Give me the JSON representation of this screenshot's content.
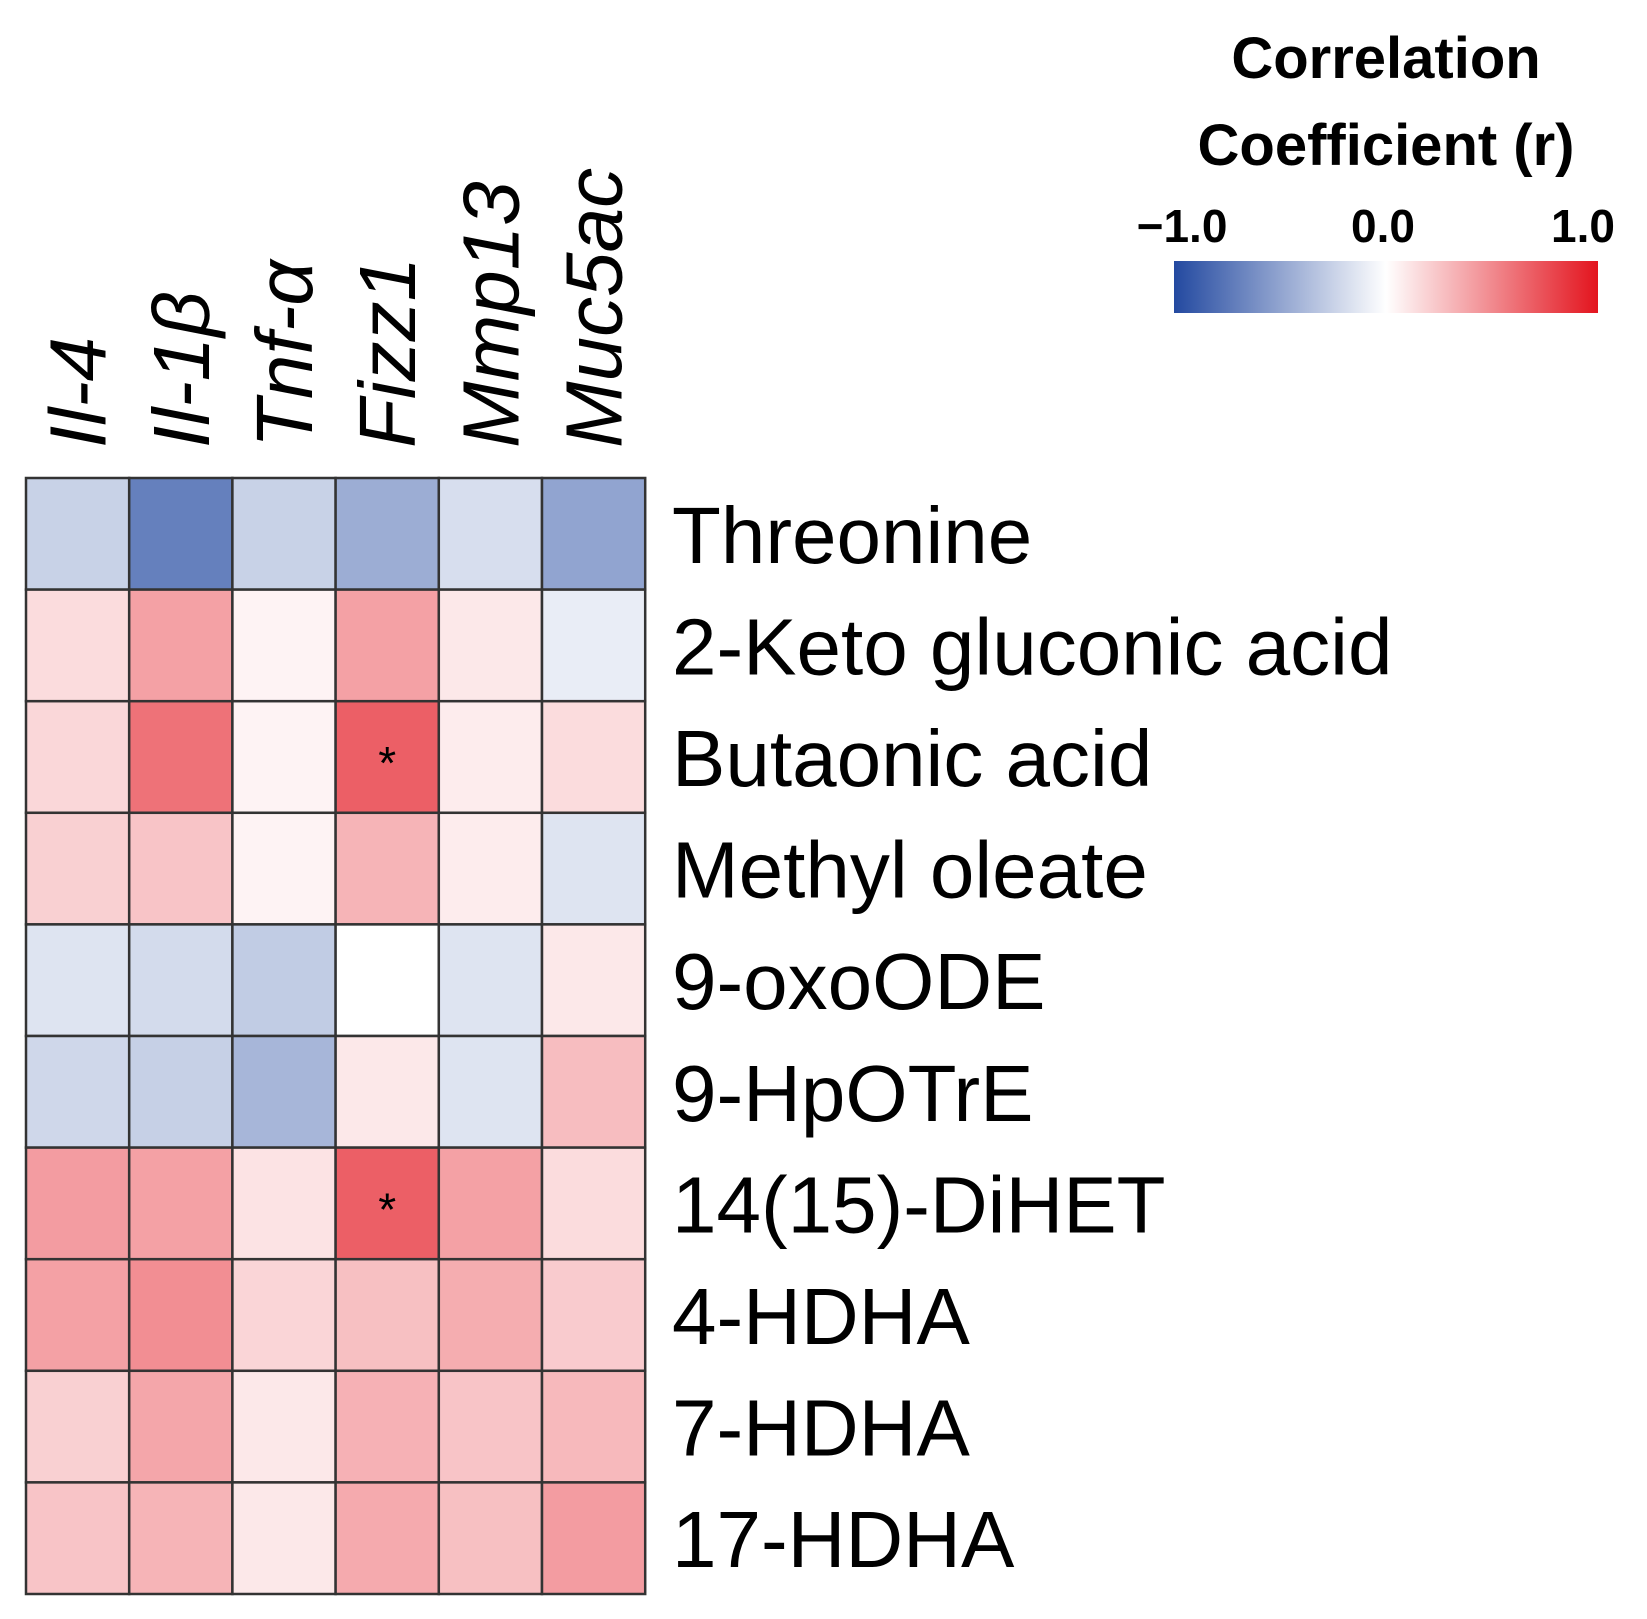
{
  "chart_data": {
    "type": "heatmap",
    "columns": [
      "Il-4",
      "Il-1β",
      "Tnf-α",
      "Fizz1",
      "Mmp13",
      "Muc5ac"
    ],
    "rows": [
      "Threonine",
      "2-Keto gluconic acid",
      "Butaonic acid",
      "Methyl oleate",
      "9-oxoODE",
      "9-HpOTrE",
      "14(15)-DiHET",
      "4-HDHA",
      "7-HDHA",
      "17-HDHA"
    ],
    "values": [
      [
        -0.25,
        -0.7,
        -0.25,
        -0.45,
        -0.18,
        -0.5
      ],
      [
        0.15,
        0.4,
        0.05,
        0.4,
        0.1,
        -0.1
      ],
      [
        0.17,
        0.6,
        0.05,
        0.68,
        0.08,
        0.15
      ],
      [
        0.2,
        0.25,
        0.05,
        0.32,
        0.08,
        -0.15
      ],
      [
        -0.15,
        -0.2,
        -0.28,
        0.0,
        -0.15,
        0.1
      ],
      [
        -0.22,
        -0.26,
        -0.4,
        0.1,
        -0.15,
        0.28
      ],
      [
        0.42,
        0.4,
        0.12,
        0.68,
        0.4,
        0.15
      ],
      [
        0.4,
        0.48,
        0.18,
        0.27,
        0.35,
        0.22
      ],
      [
        0.2,
        0.38,
        0.1,
        0.33,
        0.25,
        0.3
      ],
      [
        0.25,
        0.32,
        0.1,
        0.36,
        0.27,
        0.42
      ]
    ],
    "significance": [
      [
        "",
        "",
        "",
        "",
        "",
        ""
      ],
      [
        "",
        "",
        "",
        "",
        "",
        ""
      ],
      [
        "",
        "",
        "",
        "*",
        "",
        ""
      ],
      [
        "",
        "",
        "",
        "",
        "",
        ""
      ],
      [
        "",
        "",
        "",
        "",
        "",
        ""
      ],
      [
        "",
        "",
        "",
        "",
        "",
        ""
      ],
      [
        "",
        "",
        "",
        "*",
        "",
        ""
      ],
      [
        "",
        "",
        "",
        "",
        "",
        ""
      ],
      [
        "",
        "",
        "",
        "",
        "",
        ""
      ],
      [
        "",
        "",
        "",
        "",
        "",
        ""
      ]
    ],
    "legend": {
      "title_lines": [
        "Correlation",
        "Coefficient (r)"
      ],
      "tick_labels": [
        "−1.0",
        "0.0",
        "1.0"
      ],
      "tick_values": [
        -1.0,
        0.0,
        1.0
      ],
      "range": [
        -1.0,
        1.0
      ],
      "placement": "top-right"
    },
    "colors": {
      "negative": "#2349a0",
      "neutral": "#ffffff",
      "positive": "#e3141e",
      "grid_line": "#333333"
    }
  }
}
